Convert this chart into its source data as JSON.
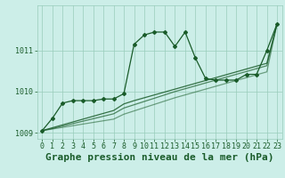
{
  "background_color": "#cceee8",
  "grid_color": "#99ccbb",
  "line_color": "#1a5c2a",
  "title": "Graphe pression niveau de la mer (hPa)",
  "xlim": [
    -0.5,
    23.5
  ],
  "ylim": [
    1008.85,
    1012.1
  ],
  "yticks": [
    1009,
    1010,
    1011
  ],
  "xticks": [
    0,
    1,
    2,
    3,
    4,
    5,
    6,
    7,
    8,
    9,
    10,
    11,
    12,
    13,
    14,
    15,
    16,
    17,
    18,
    19,
    20,
    21,
    22,
    23
  ],
  "series1_x": [
    0,
    1,
    2,
    3,
    4,
    5,
    6,
    7,
    8,
    9,
    10,
    11,
    12,
    13,
    14,
    15,
    16,
    17,
    18,
    19,
    20,
    21,
    22,
    23
  ],
  "series1_y": [
    1009.05,
    1009.35,
    1009.72,
    1009.78,
    1009.78,
    1009.78,
    1009.82,
    1009.82,
    1009.95,
    1011.15,
    1011.38,
    1011.45,
    1011.45,
    1011.1,
    1011.45,
    1010.82,
    1010.32,
    1010.28,
    1010.28,
    1010.28,
    1010.42,
    1010.42,
    1011.0,
    1011.65
  ],
  "series2_x": [
    0,
    1,
    2,
    3,
    4,
    5,
    6,
    7,
    8,
    9,
    10,
    11,
    12,
    13,
    14,
    15,
    16,
    17,
    18,
    19,
    20,
    21,
    22,
    23
  ],
  "series2_y": [
    1009.05,
    1009.12,
    1009.19,
    1009.26,
    1009.33,
    1009.4,
    1009.47,
    1009.54,
    1009.7,
    1009.78,
    1009.85,
    1009.92,
    1009.99,
    1010.06,
    1010.13,
    1010.2,
    1010.27,
    1010.34,
    1010.41,
    1010.48,
    1010.55,
    1010.62,
    1010.69,
    1011.65
  ],
  "series3_x": [
    0,
    1,
    2,
    3,
    4,
    5,
    6,
    7,
    8,
    9,
    10,
    11,
    12,
    13,
    14,
    15,
    16,
    17,
    18,
    19,
    20,
    21,
    22,
    23
  ],
  "series3_y": [
    1009.05,
    1009.1,
    1009.16,
    1009.22,
    1009.28,
    1009.34,
    1009.4,
    1009.46,
    1009.6,
    1009.68,
    1009.76,
    1009.84,
    1009.92,
    1010.0,
    1010.07,
    1010.14,
    1010.21,
    1010.28,
    1010.35,
    1010.42,
    1010.49,
    1010.56,
    1010.63,
    1011.65
  ],
  "series4_x": [
    0,
    1,
    2,
    3,
    4,
    5,
    6,
    7,
    8,
    9,
    10,
    11,
    12,
    13,
    14,
    15,
    16,
    17,
    18,
    19,
    20,
    21,
    22,
    23
  ],
  "series4_y": [
    1009.05,
    1009.09,
    1009.13,
    1009.17,
    1009.21,
    1009.25,
    1009.29,
    1009.33,
    1009.45,
    1009.53,
    1009.61,
    1009.69,
    1009.77,
    1009.85,
    1009.92,
    1009.99,
    1010.06,
    1010.13,
    1010.2,
    1010.27,
    1010.34,
    1010.41,
    1010.48,
    1011.65
  ],
  "title_fontsize": 8,
  "tick_fontsize": 6,
  "figwidth": 3.2,
  "figheight": 2.0,
  "dpi": 100
}
